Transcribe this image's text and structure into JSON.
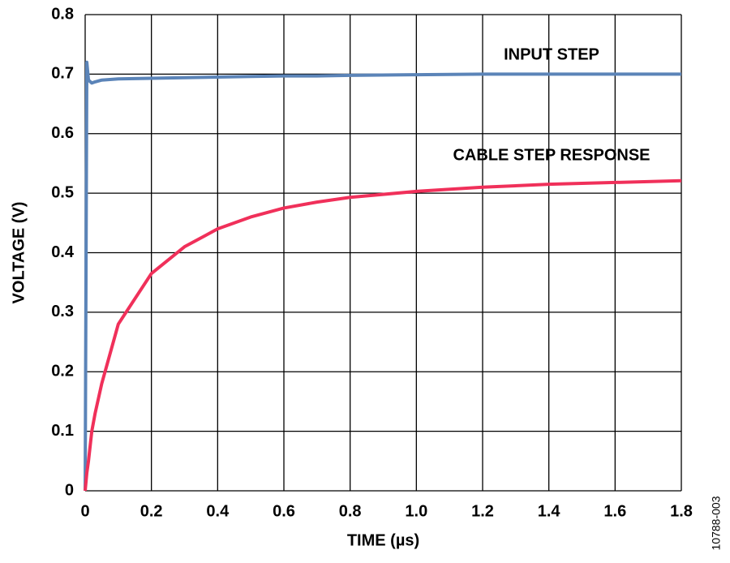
{
  "chart_data": {
    "type": "line",
    "x_label": "TIME (µs)",
    "y_label": "VOLTAGE (V)",
    "annotations": [
      "INPUT STEP",
      "CABLE STEP RESPONSE"
    ],
    "figure_id": "10788-003",
    "x": [
      0,
      0.005,
      0.01,
      0.02,
      0.03,
      0.05,
      0.1,
      0.2,
      0.3,
      0.4,
      0.5,
      0.6,
      0.7,
      0.8,
      1.0,
      1.2,
      1.4,
      1.6,
      1.8
    ],
    "series": [
      {
        "name": "INPUT STEP",
        "color": "#5b84b8",
        "values": [
          0,
          0.72,
          0.69,
          0.685,
          0.687,
          0.69,
          0.692,
          0.693,
          0.694,
          0.695,
          0.696,
          0.697,
          0.697,
          0.698,
          0.699,
          0.7,
          0.7,
          0.7,
          0.7
        ]
      },
      {
        "name": "CABLE STEP RESPONSE",
        "color": "#f0305a",
        "values": [
          0,
          0.03,
          0.05,
          0.1,
          0.13,
          0.18,
          0.28,
          0.365,
          0.41,
          0.44,
          0.46,
          0.475,
          0.485,
          0.493,
          0.503,
          0.51,
          0.515,
          0.518,
          0.521
        ]
      }
    ],
    "xlim": [
      0,
      1.8
    ],
    "xticks": [
      0,
      0.2,
      0.4,
      0.6,
      0.8,
      {
        "value": 1,
        "label": "1.0"
      },
      1.2,
      1.4,
      1.6,
      1.8
    ],
    "ylim": [
      0,
      0.8
    ],
    "yticks": [
      0,
      0.1,
      0.2,
      0.3,
      0.4,
      0.5,
      0.6,
      0.7,
      0.8
    ],
    "grid": true
  }
}
